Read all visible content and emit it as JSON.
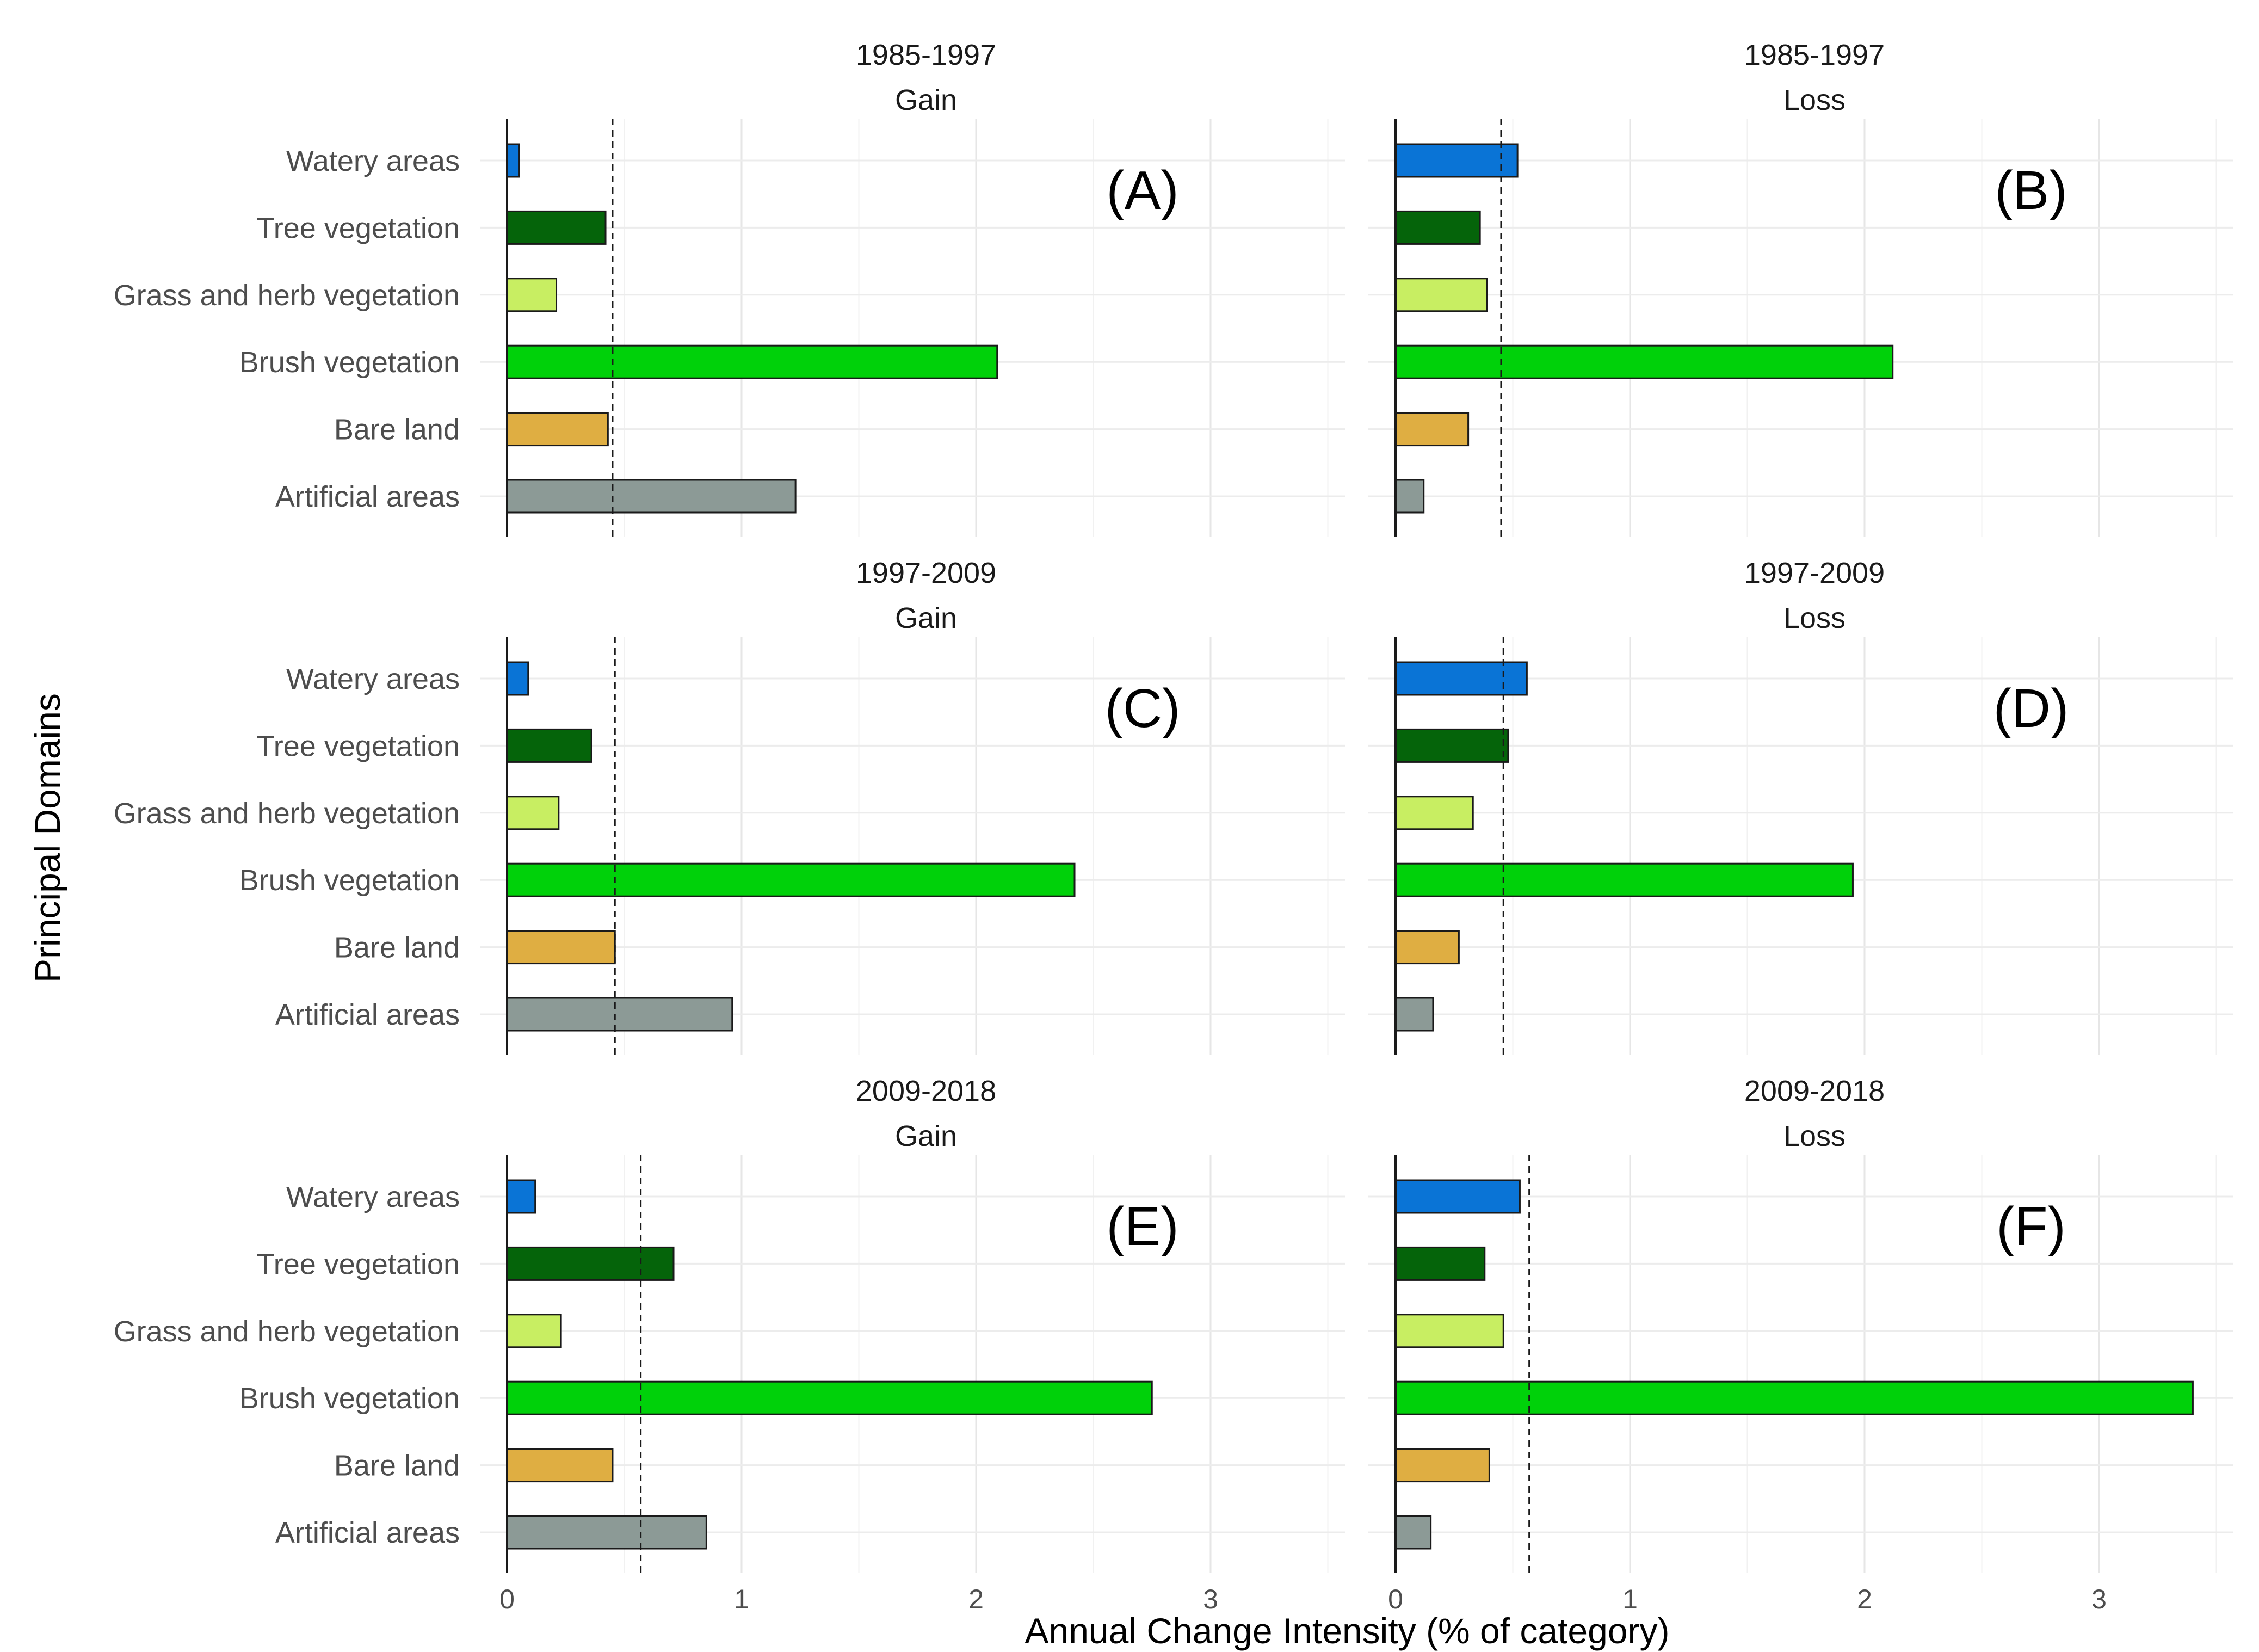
{
  "chart_data": {
    "type": "bar",
    "orientation": "horizontal",
    "xlabel": "Annual Change Intensity (% of category)",
    "ylabel": "Principal Domains",
    "xlim": [
      0,
      3.5
    ],
    "x_ticks": [
      0,
      1,
      2,
      3
    ],
    "grid": true,
    "categories": [
      "Watery areas",
      "Tree vegetation",
      "Grass and herb vegetation",
      "Brush vegetation",
      "Bare land",
      "Artificial areas"
    ],
    "category_colors": [
      "#0a74d6",
      "#05640a",
      "#c8ee62",
      "#00d10a",
      "#dfae42",
      "#8c9a96"
    ],
    "panels": [
      {
        "letter": "(A)",
        "period": "1985-1997",
        "kind": "Gain",
        "values": [
          0.05,
          0.42,
          0.21,
          2.09,
          0.43,
          1.23
        ],
        "uniform_line": 0.45
      },
      {
        "letter": "(B)",
        "period": "1985-1997",
        "kind": "Loss",
        "values": [
          0.52,
          0.36,
          0.39,
          2.12,
          0.31,
          0.12
        ],
        "uniform_line": 0.45
      },
      {
        "letter": "(C)",
        "period": "1997-2009",
        "kind": "Gain",
        "values": [
          0.09,
          0.36,
          0.22,
          2.42,
          0.46,
          0.96
        ],
        "uniform_line": 0.46
      },
      {
        "letter": "(D)",
        "period": "1997-2009",
        "kind": "Loss",
        "values": [
          0.56,
          0.48,
          0.33,
          1.95,
          0.27,
          0.16
        ],
        "uniform_line": 0.46
      },
      {
        "letter": "(E)",
        "period": "2009-2018",
        "kind": "Gain",
        "values": [
          0.12,
          0.71,
          0.23,
          2.75,
          0.45,
          0.85
        ],
        "uniform_line": 0.57
      },
      {
        "letter": "(F)",
        "period": "2009-2018",
        "kind": "Loss",
        "values": [
          0.53,
          0.38,
          0.46,
          3.4,
          0.4,
          0.15
        ],
        "uniform_line": 0.57
      }
    ]
  }
}
